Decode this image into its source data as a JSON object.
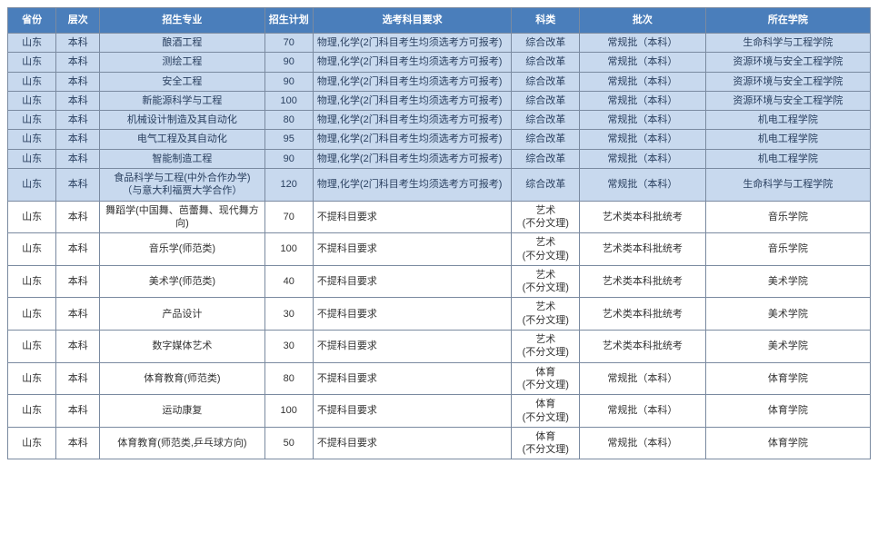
{
  "columns": [
    "省份",
    "层次",
    "招生专业",
    "招生计划",
    "选考科目要求",
    "科类",
    "批次",
    "所在学院"
  ],
  "col_classes": [
    "col-province",
    "col-level",
    "col-major",
    "col-plan",
    "col-req",
    "col-cat",
    "col-batch",
    "col-college"
  ],
  "rows": [
    {
      "band": "blue",
      "cells": [
        "山东",
        "本科",
        "酿酒工程",
        "70",
        "物理,化学(2门科目考生均须选考方可报考)",
        "综合改革",
        "常规批（本科）",
        "生命科学与工程学院"
      ]
    },
    {
      "band": "blue",
      "cells": [
        "山东",
        "本科",
        "测绘工程",
        "90",
        "物理,化学(2门科目考生均须选考方可报考)",
        "综合改革",
        "常规批（本科）",
        "资源环境与安全工程学院"
      ]
    },
    {
      "band": "blue",
      "cells": [
        "山东",
        "本科",
        "安全工程",
        "90",
        "物理,化学(2门科目考生均须选考方可报考)",
        "综合改革",
        "常规批（本科）",
        "资源环境与安全工程学院"
      ]
    },
    {
      "band": "blue",
      "cells": [
        "山东",
        "本科",
        "新能源科学与工程",
        "100",
        "物理,化学(2门科目考生均须选考方可报考)",
        "综合改革",
        "常规批（本科）",
        "资源环境与安全工程学院"
      ]
    },
    {
      "band": "blue",
      "cells": [
        "山东",
        "本科",
        "机械设计制造及其自动化",
        "80",
        "物理,化学(2门科目考生均须选考方可报考)",
        "综合改革",
        "常规批（本科）",
        "机电工程学院"
      ]
    },
    {
      "band": "blue",
      "cells": [
        "山东",
        "本科",
        "电气工程及其自动化",
        "95",
        "物理,化学(2门科目考生均须选考方可报考)",
        "综合改革",
        "常规批（本科）",
        "机电工程学院"
      ]
    },
    {
      "band": "blue",
      "cells": [
        "山东",
        "本科",
        "智能制造工程",
        "90",
        "物理,化学(2门科目考生均须选考方可报考)",
        "综合改革",
        "常规批（本科）",
        "机电工程学院"
      ]
    },
    {
      "band": "blue",
      "cells": [
        "山东",
        "本科",
        "食品科学与工程(中外合作办学)（与意大利福贾大学合作）",
        "120",
        "物理,化学(2门科目考生均须选考方可报考)",
        "综合改革",
        "常规批（本科）",
        "生命科学与工程学院"
      ]
    },
    {
      "band": "white",
      "cells": [
        "山东",
        "本科",
        "舞蹈学(中国舞、芭蕾舞、现代舞方向)",
        "70",
        "不提科目要求",
        "艺术\n(不分文理)",
        "艺术类本科批统考",
        "音乐学院"
      ]
    },
    {
      "band": "white",
      "cells": [
        "山东",
        "本科",
        "音乐学(师范类)",
        "100",
        "不提科目要求",
        "艺术\n(不分文理)",
        "艺术类本科批统考",
        "音乐学院"
      ]
    },
    {
      "band": "white",
      "cells": [
        "山东",
        "本科",
        "美术学(师范类)",
        "40",
        "不提科目要求",
        "艺术\n(不分文理)",
        "艺术类本科批统考",
        "美术学院"
      ]
    },
    {
      "band": "white",
      "cells": [
        "山东",
        "本科",
        "产品设计",
        "30",
        "不提科目要求",
        "艺术\n(不分文理)",
        "艺术类本科批统考",
        "美术学院"
      ]
    },
    {
      "band": "white",
      "cells": [
        "山东",
        "本科",
        "数字媒体艺术",
        "30",
        "不提科目要求",
        "艺术\n(不分文理)",
        "艺术类本科批统考",
        "美术学院"
      ]
    },
    {
      "band": "white",
      "cells": [
        "山东",
        "本科",
        "体育教育(师范类)",
        "80",
        "不提科目要求",
        "体育\n(不分文理)",
        "常规批（本科）",
        "体育学院"
      ]
    },
    {
      "band": "white",
      "cells": [
        "山东",
        "本科",
        "运动康复",
        "100",
        "不提科目要求",
        "体育\n(不分文理)",
        "常规批（本科）",
        "体育学院"
      ]
    },
    {
      "band": "white",
      "cells": [
        "山东",
        "本科",
        "体育教育(师范类,乒乓球方向)",
        "50",
        "不提科目要求",
        "体育\n(不分文理)",
        "常规批（本科）",
        "体育学院"
      ]
    }
  ],
  "req_col_index": 4,
  "multiline_col_index": 5
}
